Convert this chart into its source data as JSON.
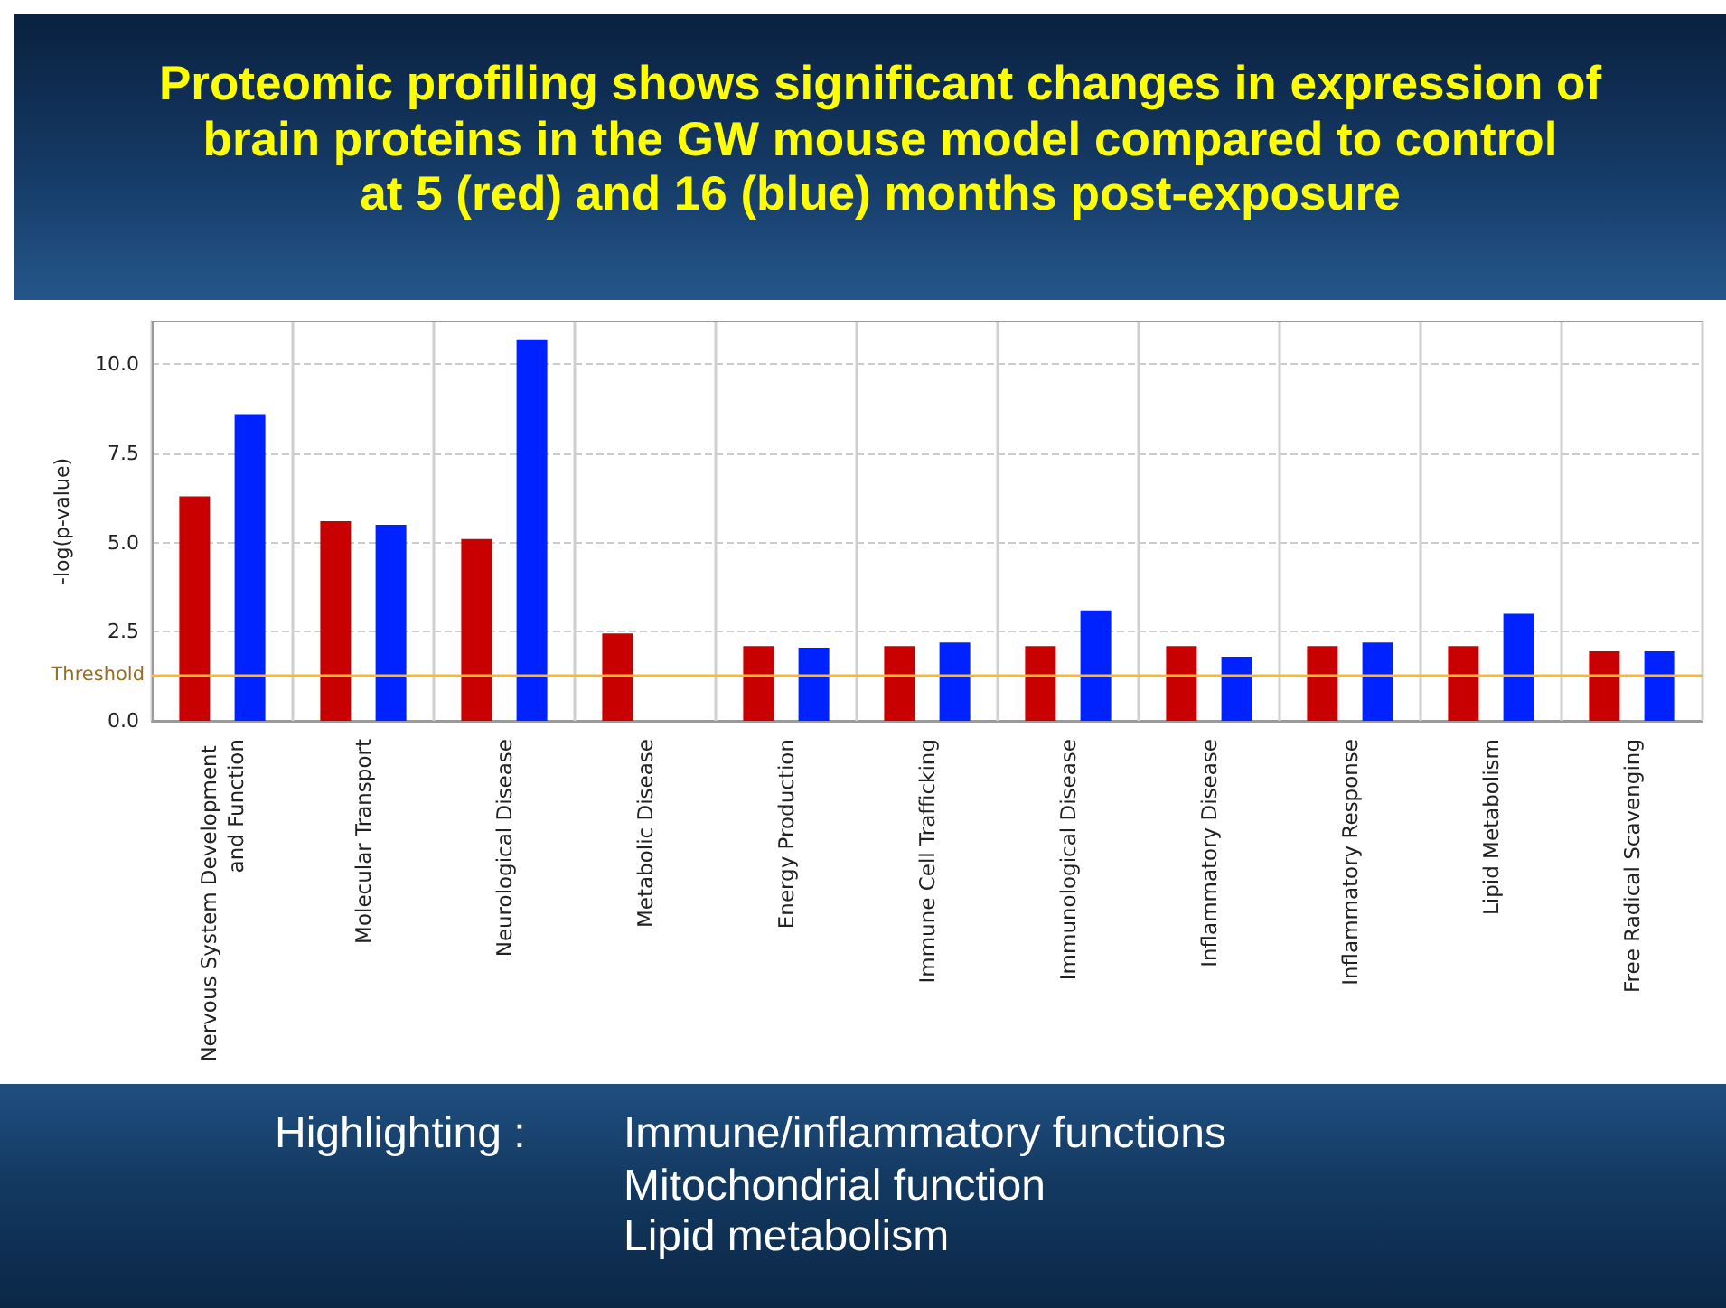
{
  "chart_data": {
    "type": "bar",
    "title": "Proteomic profiling shows significant changes in expression of\nbrain proteins in the GW mouse model compared to control\nat 5 (red) and 16 (blue) months post-exposure",
    "ylabel": "-log(p-value)",
    "categories": [
      "Nervous System Development and Function",
      "Molecular Transport",
      "Neurological Disease",
      "Metabolic Disease",
      "Energy Production",
      "Immune Cell Trafficking",
      "Immunological Disease",
      "Inflammatory Disease",
      "Inflammatory Response",
      "Lipid Metabolism",
      "Free Radical Scavenging"
    ],
    "series": [
      {
        "color": "#c80000",
        "values": [
          6.3,
          5.6,
          5.1,
          2.45,
          2.1,
          2.1,
          2.1,
          2.1,
          2.1,
          2.1,
          1.95
        ]
      },
      {
        "color": "#0022ff",
        "values": [
          8.6,
          5.5,
          10.7,
          null,
          2.05,
          2.2,
          3.1,
          1.8,
          2.2,
          3.0,
          1.95
        ]
      }
    ],
    "ylim": [
      0,
      11.2
    ],
    "yticks": [
      {
        "value": 0,
        "label": "0.0"
      },
      2.5,
      {
        "value": 5,
        "label": "5.0"
      },
      7.5,
      {
        "value": 10,
        "label": "10.0"
      }
    ],
    "grid": true,
    "ref_lines": [
      {
        "axis": "y",
        "value": 1.3,
        "label": "Threshold",
        "color": "#f9b73a"
      }
    ],
    "annotations": [
      "Highlighting :",
      "Immune/inflammatory functions",
      "Mitochondrial function",
      "Lipid metabolism"
    ]
  }
}
